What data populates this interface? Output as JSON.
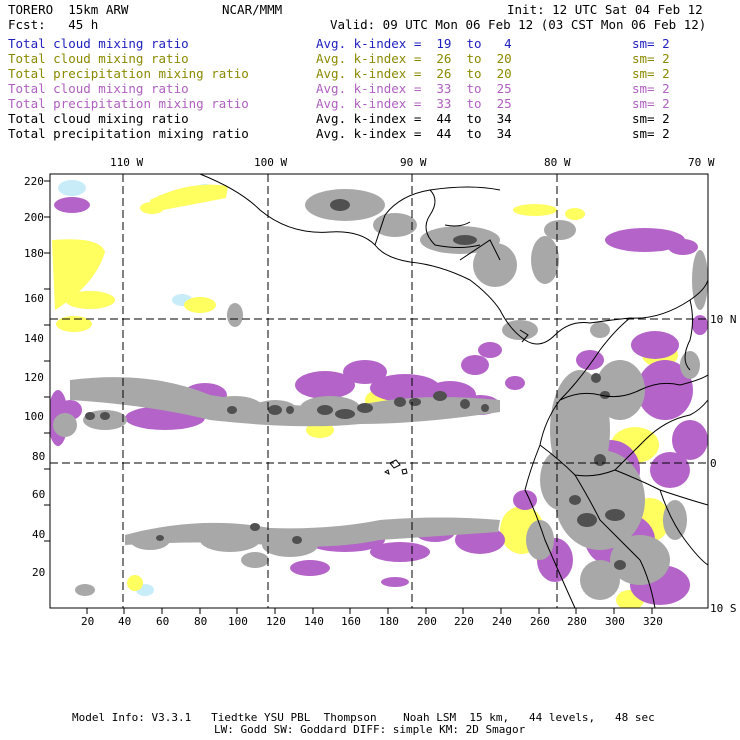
{
  "header": {
    "model": "TORERO  15km ARW",
    "org": "NCAR/MMM",
    "init": "Init: 12 UTC Sat 04 Feb 12",
    "fcst": "Fcst:   45 h",
    "valid": "Valid: 09 UTC Mon 06 Feb 12 (03 CST Mon 06 Feb 12)"
  },
  "legend": [
    {
      "field": "Total cloud mixing ratio",
      "index": "Avg. k-index =  19  to   4",
      "sm": "sm= 2",
      "color": "#2020c0"
    },
    {
      "field": "Total cloud mixing ratio",
      "index": "Avg. k-index =  26  to  20",
      "sm": "sm= 2",
      "color": "#8a8a00"
    },
    {
      "field": "Total precipitation mixing ratio",
      "index": "Avg. k-index =  26  to  20",
      "sm": "sm= 2",
      "color": "#8a8a00"
    },
    {
      "field": "Total cloud mixing ratio",
      "index": "Avg. k-index =  33  to  25",
      "sm": "sm= 2",
      "color": "#b060c0"
    },
    {
      "field": "Total precipitation mixing ratio",
      "index": "Avg. k-index =  33  to  25",
      "sm": "sm= 2",
      "color": "#b060c0"
    },
    {
      "field": "Total cloud mixing ratio",
      "index": "Avg. k-index =  44  to  34",
      "sm": "sm= 2",
      "color": "#000000"
    },
    {
      "field": "Total precipitation mixing ratio",
      "index": "Avg. k-index =  44  to  34",
      "sm": "sm= 2",
      "color": "#000000"
    }
  ],
  "map": {
    "lon_labels": [
      "110 W",
      "100 W",
      "90 W",
      "80 W",
      "70 W"
    ],
    "lat_labels": [
      "10 N",
      "0",
      "10 S"
    ],
    "y_ticks": [
      "220",
      "200",
      "180",
      "160",
      "140",
      "120",
      "100",
      "80",
      "60",
      "40",
      "20"
    ],
    "x_ticks": [
      "20",
      "40",
      "60",
      "80",
      "100",
      "120",
      "140",
      "160",
      "180",
      "200",
      "220",
      "240",
      "260",
      "280",
      "300",
      "320"
    ],
    "colors": {
      "cyan": "#c8ecf8",
      "yellow": "#ffff60",
      "purple": "#b464c8",
      "gray": "#a8a8a8",
      "dark": "#505050"
    }
  },
  "footer": {
    "line1": "Model Info: V3.3.1   Tiedtke YSU PBL  Thompson    Noah LSM  15 km,   44 levels,   48 sec",
    "line2": "LW: Godd SW: Goddard DIFF: simple KM: 2D Smagor"
  }
}
